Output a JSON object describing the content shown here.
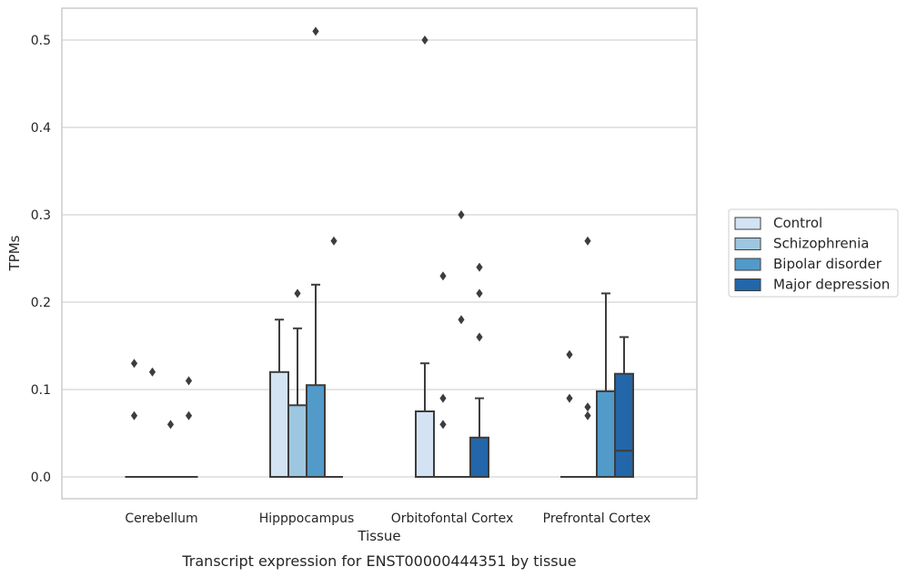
{
  "chart_data": {
    "type": "boxplot",
    "caption": "Transcript expression for ENST00000444351 by tissue",
    "xlabel": "Tissue",
    "ylabel": "TPMs",
    "ylim": [
      -0.025,
      0.537
    ],
    "yticks": [
      "0.0",
      "0.1",
      "0.2",
      "0.3",
      "0.4",
      "0.5"
    ],
    "grid": true,
    "legend_position": "right",
    "categories": [
      "Cerebellum",
      "Hipppocampus",
      "Orbitofontal Cortex",
      "Prefrontal Cortex"
    ],
    "series": [
      {
        "name": "Control",
        "color": "#d3e3f3"
      },
      {
        "name": "Schizophrenia",
        "color": "#9dc7e0"
      },
      {
        "name": "Bipolar disorder",
        "color": "#519ac9"
      },
      {
        "name": "Major depression",
        "color": "#2366a9"
      }
    ],
    "boxes": [
      [
        {
          "q1": 0,
          "median": 0,
          "q3": 0,
          "whisker_low": 0,
          "whisker_high": 0,
          "outliers": [
            0.13,
            0.07
          ]
        },
        {
          "q1": 0,
          "median": 0,
          "q3": 0,
          "whisker_low": 0,
          "whisker_high": 0,
          "outliers": [
            0.12
          ]
        },
        {
          "q1": 0,
          "median": 0,
          "q3": 0,
          "whisker_low": 0,
          "whisker_high": 0,
          "outliers": [
            0.06
          ]
        },
        {
          "q1": 0,
          "median": 0,
          "q3": 0,
          "whisker_low": 0,
          "whisker_high": 0,
          "outliers": [
            0.11,
            0.07
          ]
        }
      ],
      [
        {
          "q1": 0,
          "median": 0,
          "q3": 0.12,
          "whisker_low": 0,
          "whisker_high": 0.18,
          "outliers": []
        },
        {
          "q1": 0,
          "median": 0,
          "q3": 0.082,
          "whisker_low": 0,
          "whisker_high": 0.17,
          "outliers": [
            0.21
          ]
        },
        {
          "q1": 0,
          "median": 0,
          "q3": 0.105,
          "whisker_low": 0,
          "whisker_high": 0.22,
          "outliers": [
            0.51
          ]
        },
        {
          "q1": 0,
          "median": 0,
          "q3": 0,
          "whisker_low": 0,
          "whisker_high": 0,
          "outliers": [
            0.27
          ]
        }
      ],
      [
        {
          "q1": 0,
          "median": 0,
          "q3": 0.075,
          "whisker_low": 0,
          "whisker_high": 0.13,
          "outliers": [
            0.5
          ]
        },
        {
          "q1": 0,
          "median": 0,
          "q3": 0,
          "whisker_low": 0,
          "whisker_high": 0,
          "outliers": [
            0.23,
            0.09,
            0.06
          ]
        },
        {
          "q1": 0,
          "median": 0,
          "q3": 0,
          "whisker_low": 0,
          "whisker_high": 0,
          "outliers": [
            0.3,
            0.18
          ]
        },
        {
          "q1": 0,
          "median": 0,
          "q3": 0.045,
          "whisker_low": 0,
          "whisker_high": 0.09,
          "outliers": [
            0.24,
            0.21,
            0.16
          ]
        }
      ],
      [
        {
          "q1": 0,
          "median": 0,
          "q3": 0,
          "whisker_low": 0,
          "whisker_high": 0,
          "outliers": [
            0.14,
            0.09
          ]
        },
        {
          "q1": 0,
          "median": 0,
          "q3": 0,
          "whisker_low": 0,
          "whisker_high": 0,
          "outliers": [
            0.27,
            0.08,
            0.07
          ]
        },
        {
          "q1": 0,
          "median": 0,
          "q3": 0.098,
          "whisker_low": 0,
          "whisker_high": 0.21,
          "outliers": []
        },
        {
          "q1": 0,
          "median": 0.03,
          "q3": 0.118,
          "whisker_low": 0,
          "whisker_high": 0.16,
          "outliers": []
        }
      ]
    ]
  }
}
